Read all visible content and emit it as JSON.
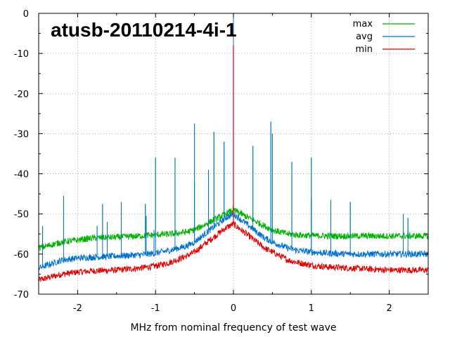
{
  "chart_data": {
    "type": "line",
    "title": "atusb-20110214-4i-1",
    "xlabel": "MHz from nominal frequency of test wave",
    "ylabel": "",
    "xlim": [
      -2.5,
      2.5
    ],
    "ylim": [
      -70,
      0
    ],
    "x_ticks": [
      -2,
      -1,
      0,
      1,
      2
    ],
    "x_tick_labels": [
      "-2",
      "-1",
      "0",
      "1",
      "2"
    ],
    "y_ticks": [
      -70,
      -60,
      -50,
      -40,
      -30,
      -20,
      -10,
      0
    ],
    "y_tick_labels": [
      "-70",
      "-60",
      "-50",
      "-40",
      "-30",
      "-20",
      "-10",
      "0"
    ],
    "grid": true,
    "legend_position": "top-right",
    "x": [
      -2.5,
      -2.2,
      -2.0,
      -1.8,
      -1.5,
      -1.2,
      -1.0,
      -0.8,
      -0.6,
      -0.5,
      -0.4,
      -0.3,
      -0.2,
      -0.1,
      0.0,
      0.1,
      0.2,
      0.3,
      0.4,
      0.5,
      0.6,
      0.7,
      0.8,
      1.0,
      1.2,
      1.5,
      1.8,
      2.0,
      2.2,
      2.5
    ],
    "series": [
      {
        "name": "max",
        "color": "#00b000",
        "values": [
          -58.5,
          -57.0,
          -56.5,
          -56.0,
          -55.8,
          -55.5,
          -55.2,
          -55.0,
          -54.5,
          -54.0,
          -53.0,
          -52.0,
          -51.0,
          -50.0,
          -49.0,
          -50.0,
          -51.0,
          -52.0,
          -53.0,
          -54.0,
          -54.5,
          -55.0,
          -55.2,
          -55.4,
          -55.5,
          -55.5,
          -55.5,
          -55.5,
          -55.5,
          -55.5
        ]
      },
      {
        "name": "avg",
        "color": "#0070d0",
        "values": [
          -63.5,
          -61.5,
          -61.0,
          -60.8,
          -60.5,
          -60.2,
          -59.8,
          -59.0,
          -58.0,
          -57.0,
          -55.5,
          -54.0,
          -52.5,
          -51.0,
          -50.0,
          -51.5,
          -53.0,
          -54.5,
          -56.0,
          -57.0,
          -57.8,
          -58.5,
          -59.0,
          -59.5,
          -59.8,
          -60.0,
          -60.0,
          -60.0,
          -60.0,
          -60.0
        ]
      },
      {
        "name": "min",
        "color": "#e00000",
        "values": [
          -66.5,
          -65.0,
          -64.5,
          -64.2,
          -64.0,
          -63.5,
          -63.0,
          -62.0,
          -60.5,
          -59.5,
          -58.0,
          -56.5,
          -55.0,
          -53.5,
          -52.5,
          -54.0,
          -55.5,
          -57.0,
          -58.5,
          -59.5,
          -60.5,
          -61.5,
          -62.0,
          -62.8,
          -63.2,
          -63.5,
          -63.8,
          -64.0,
          -64.0,
          -64.0
        ]
      }
    ],
    "spikes": [
      {
        "x": -2.45,
        "top": -53
      },
      {
        "x": -2.18,
        "top": -45.5
      },
      {
        "x": -1.75,
        "top": -53
      },
      {
        "x": -1.68,
        "top": -47.5
      },
      {
        "x": -1.62,
        "top": -52
      },
      {
        "x": -1.44,
        "top": -47
      },
      {
        "x": -1.13,
        "top": -47.5
      },
      {
        "x": -1.12,
        "top": -50.5
      },
      {
        "x": -1.02,
        "top": -54
      },
      {
        "x": -1.0,
        "top": -36
      },
      {
        "x": -0.75,
        "top": -36
      },
      {
        "x": -0.5,
        "top": -42
      },
      {
        "x": -0.5,
        "top": -27.5
      },
      {
        "x": -0.32,
        "top": -39
      },
      {
        "x": -0.25,
        "top": -29.5
      },
      {
        "x": -0.12,
        "top": -32
      },
      {
        "x": 0.0,
        "top": 0
      },
      {
        "x": 0.25,
        "top": -33
      },
      {
        "x": 0.48,
        "top": -27
      },
      {
        "x": 0.5,
        "top": -30
      },
      {
        "x": 0.75,
        "top": -37
      },
      {
        "x": 1.0,
        "top": -36
      },
      {
        "x": 1.0,
        "top": -46
      },
      {
        "x": 1.25,
        "top": -46.5
      },
      {
        "x": 1.5,
        "top": -47
      },
      {
        "x": 2.18,
        "top": -50
      },
      {
        "x": 2.24,
        "top": -51
      },
      {
        "x": 2.5,
        "top": -52
      }
    ]
  }
}
